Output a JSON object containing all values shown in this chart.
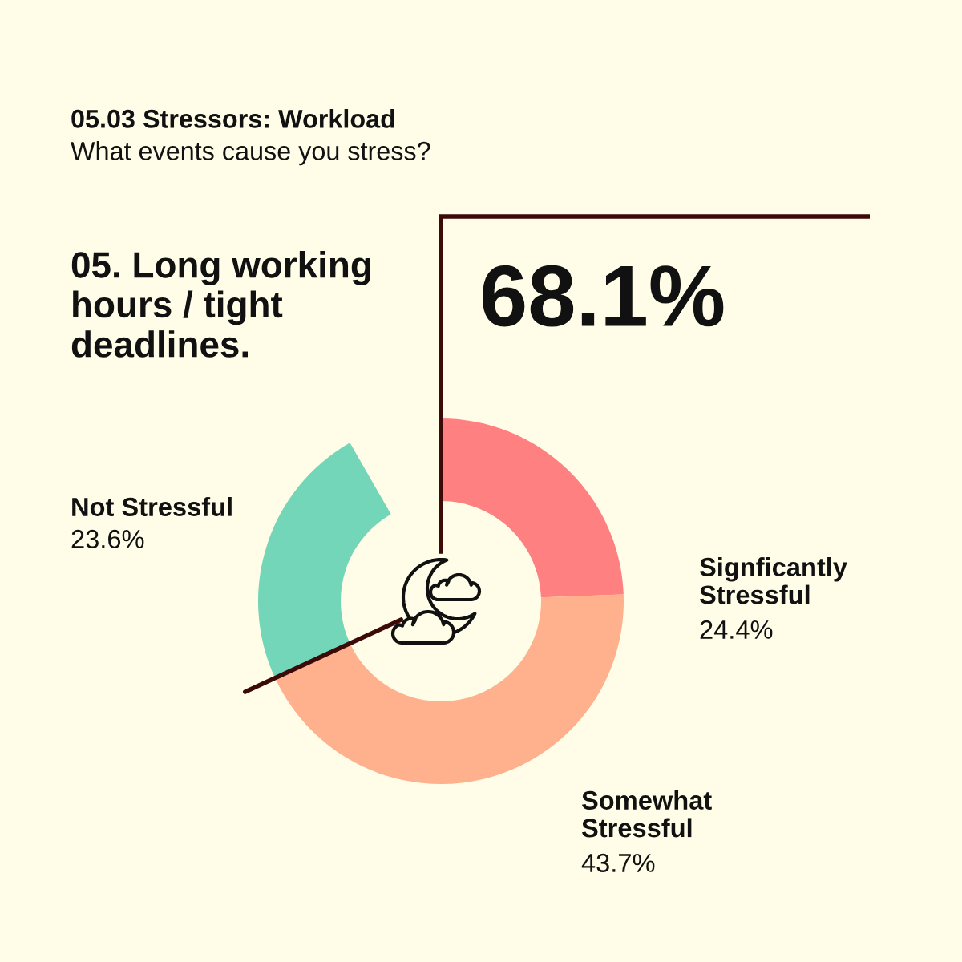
{
  "chart_data": {
    "type": "donut",
    "title": "05.03 Stressors: Workload",
    "subtitle": "What events cause you stress?",
    "categories": [
      "Signficantly Stressful",
      "Somewhat Stressful",
      "Not Stressful"
    ],
    "values": [
      24.4,
      43.7,
      23.6
    ],
    "colors": [
      "#ff8080",
      "#ffb08c",
      "#74d6b8"
    ],
    "value_labels": [
      "24.4%",
      "43.7%",
      "23.6%"
    ],
    "annotations": [
      "05. Long working hours / tight deadlines.",
      "68.1%"
    ]
  }
}
